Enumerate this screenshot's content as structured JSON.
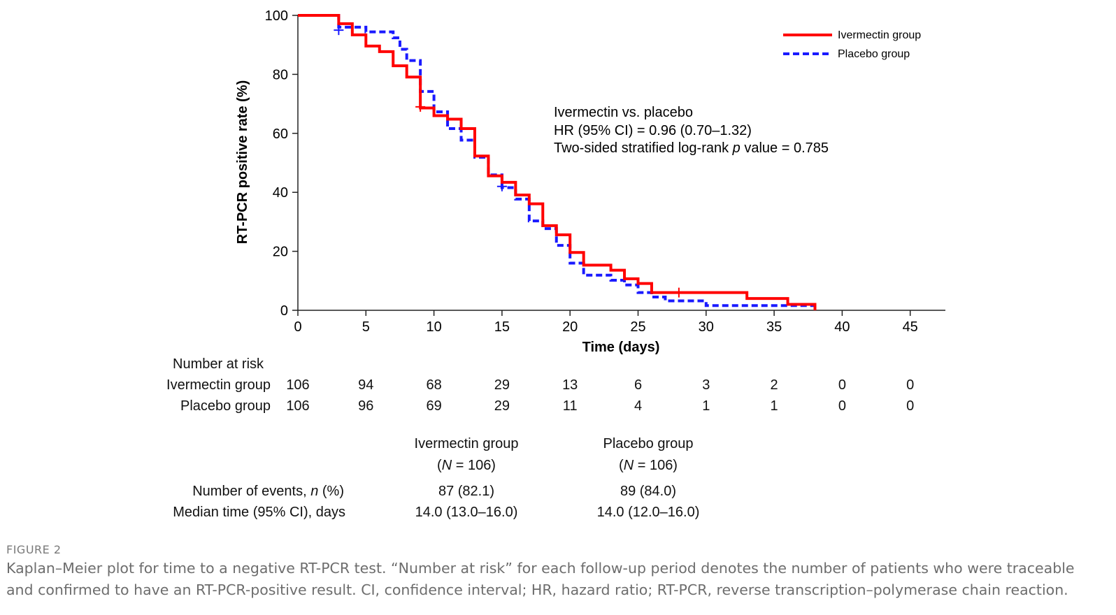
{
  "chart_data": {
    "type": "line",
    "subtype": "kaplan-meier-step",
    "xlabel": "Time (days)",
    "ylabel": "RT-PCR positive rate (%)",
    "xlim": [
      0,
      48
    ],
    "ylim": [
      0,
      100
    ],
    "xticks": [
      "0",
      "5",
      "10",
      "15",
      "20",
      "25",
      "30",
      "35",
      "40",
      "45"
    ],
    "yticks": [
      "0",
      "20",
      "40",
      "60",
      "80",
      "100"
    ],
    "legend_position": "top-right",
    "series": [
      {
        "name": "Ivermectin group",
        "color": "#ff0000",
        "style": "solid",
        "steps": [
          [
            0,
            100
          ],
          [
            3,
            97.2
          ],
          [
            4,
            93.4
          ],
          [
            5,
            89.6
          ],
          [
            6,
            87.7
          ],
          [
            7,
            82.9
          ],
          [
            8,
            79.1
          ],
          [
            9,
            68.6
          ],
          [
            10,
            66.0
          ],
          [
            11,
            64.8
          ],
          [
            12,
            61.6
          ],
          [
            13,
            52.3
          ],
          [
            14,
            45.6
          ],
          [
            15,
            43.4
          ],
          [
            16,
            39.1
          ],
          [
            17,
            36.1
          ],
          [
            18,
            28.7
          ],
          [
            19,
            25.6
          ],
          [
            20,
            19.6
          ],
          [
            21,
            15.3
          ],
          [
            23,
            13.6
          ],
          [
            24,
            10.7
          ],
          [
            25,
            9.1
          ],
          [
            26,
            6.0
          ],
          [
            33,
            4.0
          ],
          [
            36,
            2.0
          ],
          [
            38,
            0
          ]
        ],
        "censor": [
          [
            9,
            69.0
          ],
          [
            28,
            6.0
          ]
        ]
      },
      {
        "name": "Placebo group",
        "color": "#1a1aff",
        "style": "dashed",
        "steps": [
          [
            0,
            100
          ],
          [
            3,
            96.0
          ],
          [
            5,
            94.4
          ],
          [
            7,
            92.4
          ],
          [
            7.5,
            88.5
          ],
          [
            8,
            84.7
          ],
          [
            9,
            74.2
          ],
          [
            10,
            67.3
          ],
          [
            11,
            61.6
          ],
          [
            12,
            57.7
          ],
          [
            13,
            51.9
          ],
          [
            14,
            45.9
          ],
          [
            15,
            41.6
          ],
          [
            16,
            37.7
          ],
          [
            17,
            30.3
          ],
          [
            18,
            27.7
          ],
          [
            19,
            22.0
          ],
          [
            20,
            16.0
          ],
          [
            21,
            11.9
          ],
          [
            23,
            10.2
          ],
          [
            24,
            8.6
          ],
          [
            25,
            6.0
          ],
          [
            26,
            4.5
          ],
          [
            27,
            3.2
          ],
          [
            30,
            1.6
          ],
          [
            38,
            0
          ]
        ],
        "censor": [
          [
            3,
            95.0
          ],
          [
            15,
            42.0
          ]
        ]
      }
    ],
    "annotation": {
      "line1": "Ivermectin vs. placebo",
      "line2": "HR (95% CI) = 0.96 (0.70–1.32)",
      "line3_pre": "Two-sided stratified log-rank ",
      "line3_p": "p",
      "line3_post": " value = 0.785"
    }
  },
  "risk_table": {
    "title": "Number at risk",
    "rows": [
      {
        "label": "Ivermectin group",
        "values": [
          "106",
          "94",
          "68",
          "29",
          "13",
          "6",
          "3",
          "2",
          "0",
          "0"
        ]
      },
      {
        "label": "Placebo group",
        "values": [
          "106",
          "96",
          "69",
          "29",
          "11",
          "4",
          "1",
          "1",
          "0",
          "0"
        ]
      }
    ]
  },
  "events_table": {
    "col1": {
      "name": "Ivermectin group",
      "n_pre": "(",
      "n_italic": "N",
      "n_post": " = 106)"
    },
    "col2": {
      "name": "Placebo group",
      "n_pre": "(",
      "n_italic": "N",
      "n_post": " = 106)"
    },
    "rows": [
      {
        "label_pre": "Number of events, ",
        "label_italic": "n",
        "label_post": " (%)",
        "v1": "87 (82.1)",
        "v2": "89 (84.0)"
      },
      {
        "label_pre": "Median time (95% CI), days",
        "label_italic": "",
        "label_post": "",
        "v1": "14.0 (13.0–16.0)",
        "v2": "14.0 (12.0–16.0)"
      }
    ]
  },
  "figure": {
    "label": "FIGURE 2",
    "caption_line1": "Kaplan–Meier plot for time to a negative RT-PCR test. “Number at risk” for each follow-up period denotes the number of patients who were traceable",
    "caption_line2": "and confirmed to have an RT-PCR-positive result. CI, confidence interval; HR, hazard ratio; RT-PCR, reverse transcription–polymerase chain reaction."
  }
}
